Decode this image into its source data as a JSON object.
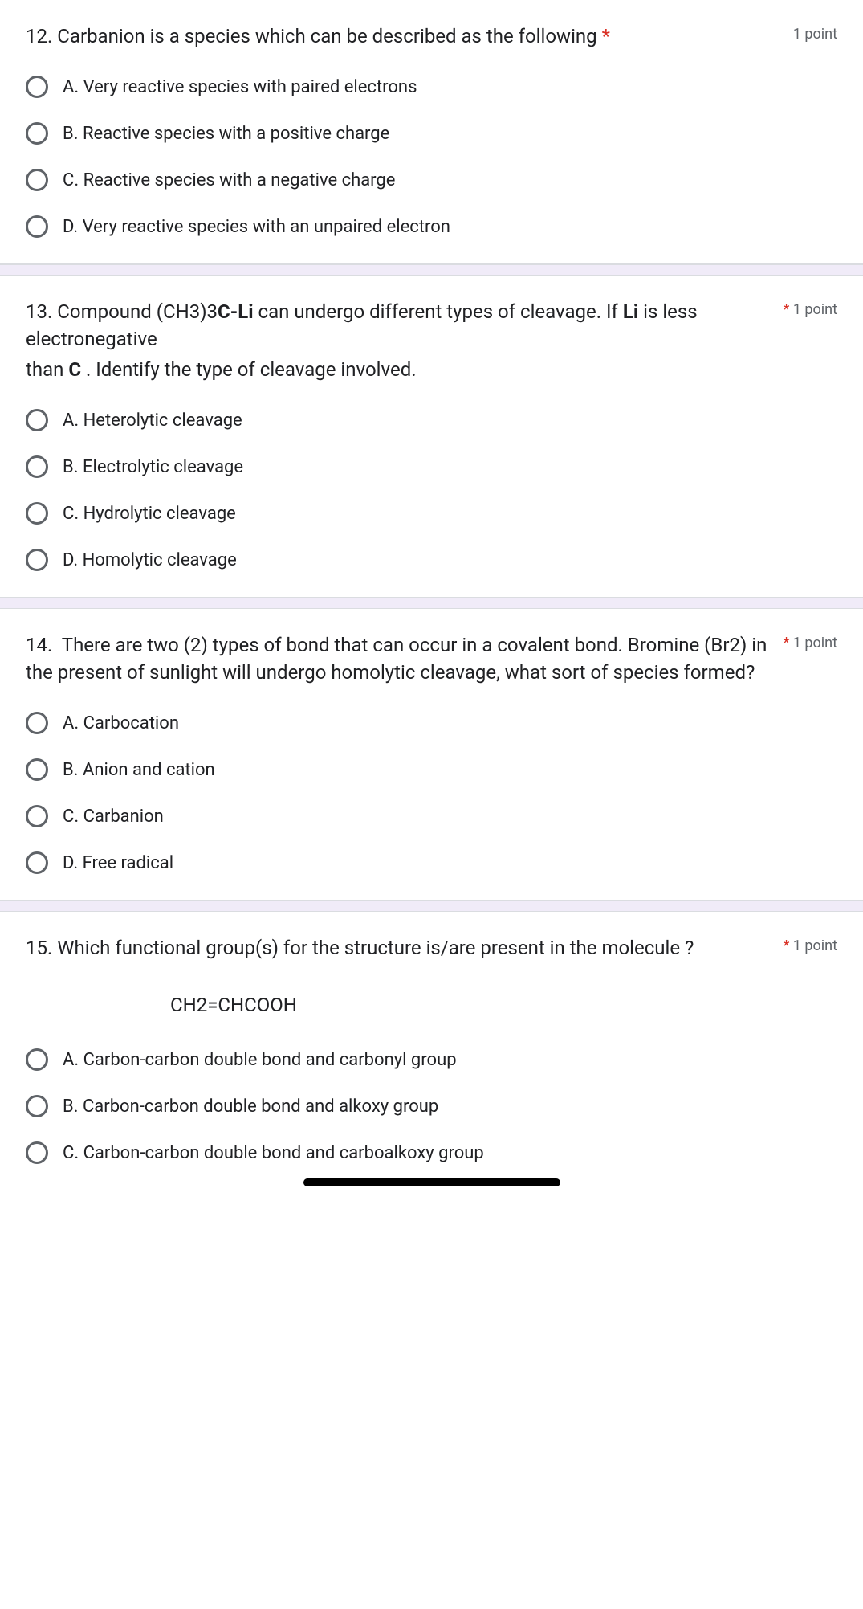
{
  "questions": [
    {
      "number": "12.",
      "text_parts": [
        "Carbanion is a species which can be described as the following"
      ],
      "required": true,
      "points": "1 point",
      "options": [
        "A.  Very reactive species with paired electrons",
        "B.  Reactive species with a positive charge",
        "C.  Reactive species with a negative charge",
        "D.  Very reactive species with an unpaired electron"
      ]
    },
    {
      "number": "13.",
      "text_html": "Compound (CH3)3<b>C-Li</b> can undergo different types of cleavage. If <b>Li</b> is less electronegative",
      "extra_html": "than <b>C</b> . Identify the type of cleavage involved.",
      "required": true,
      "points": "1 point",
      "options": [
        "A.  Heterolytic cleavage",
        "B.  Electrolytic cleavage",
        "C.  Hydrolytic cleavage",
        "D.  Homolytic cleavage"
      ]
    },
    {
      "number": "14.",
      "text_parts": [
        "There are two (2) types of bond that can occur in a covalent bond. Bromine (Br2) in the present of sunlight will undergo homolytic cleavage, what sort of species formed?"
      ],
      "required": true,
      "points": "1 point",
      "options": [
        "A.  Carbocation",
        "B.  Anion and cation",
        "C.  Carbanion",
        "D.  Free radical"
      ]
    },
    {
      "number": "15.",
      "text_parts": [
        "Which functional group(s) for the structure is/are present in the molecule ?"
      ],
      "required": true,
      "points": "1 point",
      "formula": "CH2=CHCOOH",
      "options": [
        "A.  Carbon-carbon double bond and carbonyl group",
        "B.  Carbon-carbon double bond and alkoxy group",
        "C.  Carbon-carbon double bond and carboalkoxy group"
      ]
    }
  ],
  "colors": {
    "text": "#202124",
    "muted": "#5f6368",
    "required": "#d93025",
    "separator_bg": "#f0ebf8",
    "border": "#dadce0"
  }
}
